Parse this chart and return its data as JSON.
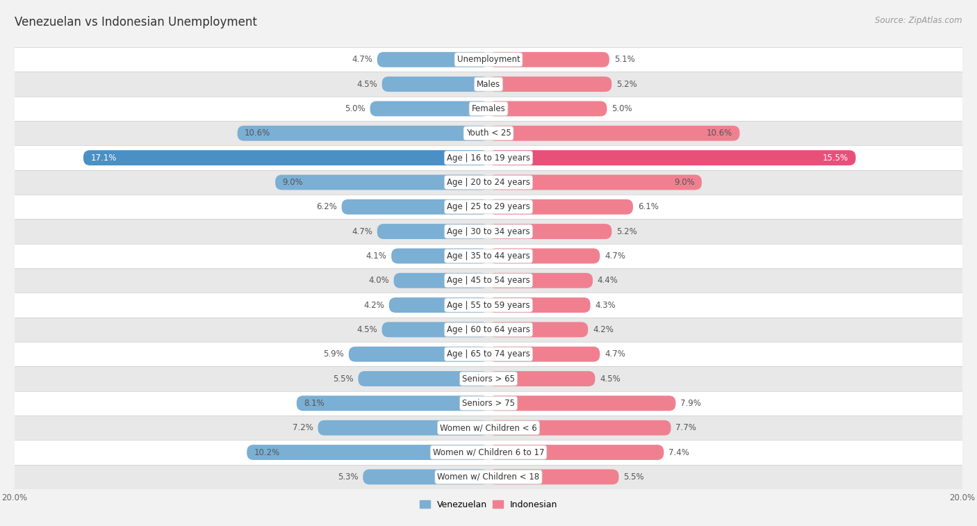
{
  "title": "Venezuelan vs Indonesian Unemployment",
  "source": "Source: ZipAtlas.com",
  "categories": [
    "Unemployment",
    "Males",
    "Females",
    "Youth < 25",
    "Age | 16 to 19 years",
    "Age | 20 to 24 years",
    "Age | 25 to 29 years",
    "Age | 30 to 34 years",
    "Age | 35 to 44 years",
    "Age | 45 to 54 years",
    "Age | 55 to 59 years",
    "Age | 60 to 64 years",
    "Age | 65 to 74 years",
    "Seniors > 65",
    "Seniors > 75",
    "Women w/ Children < 6",
    "Women w/ Children 6 to 17",
    "Women w/ Children < 18"
  ],
  "venezuelan": [
    4.7,
    4.5,
    5.0,
    10.6,
    17.1,
    9.0,
    6.2,
    4.7,
    4.1,
    4.0,
    4.2,
    4.5,
    5.9,
    5.5,
    8.1,
    7.2,
    10.2,
    5.3
  ],
  "indonesian": [
    5.1,
    5.2,
    5.0,
    10.6,
    15.5,
    9.0,
    6.1,
    5.2,
    4.7,
    4.4,
    4.3,
    4.2,
    4.7,
    4.5,
    7.9,
    7.7,
    7.4,
    5.5
  ],
  "venezuelan_color": "#7bafd4",
  "indonesian_color": "#f08090",
  "venezuelan_highlight_color": "#4a90c4",
  "indonesian_highlight_color": "#e8507a",
  "bar_height": 0.62,
  "max_val": 20.0,
  "bg_color": "#f2f2f2",
  "row_bg_light": "#ffffff",
  "row_bg_dark": "#e8e8e8",
  "value_fontsize": 8.5,
  "category_fontsize": 8.5,
  "title_fontsize": 12,
  "source_fontsize": 8.5,
  "highlight_row": "Age | 16 to 19 years"
}
